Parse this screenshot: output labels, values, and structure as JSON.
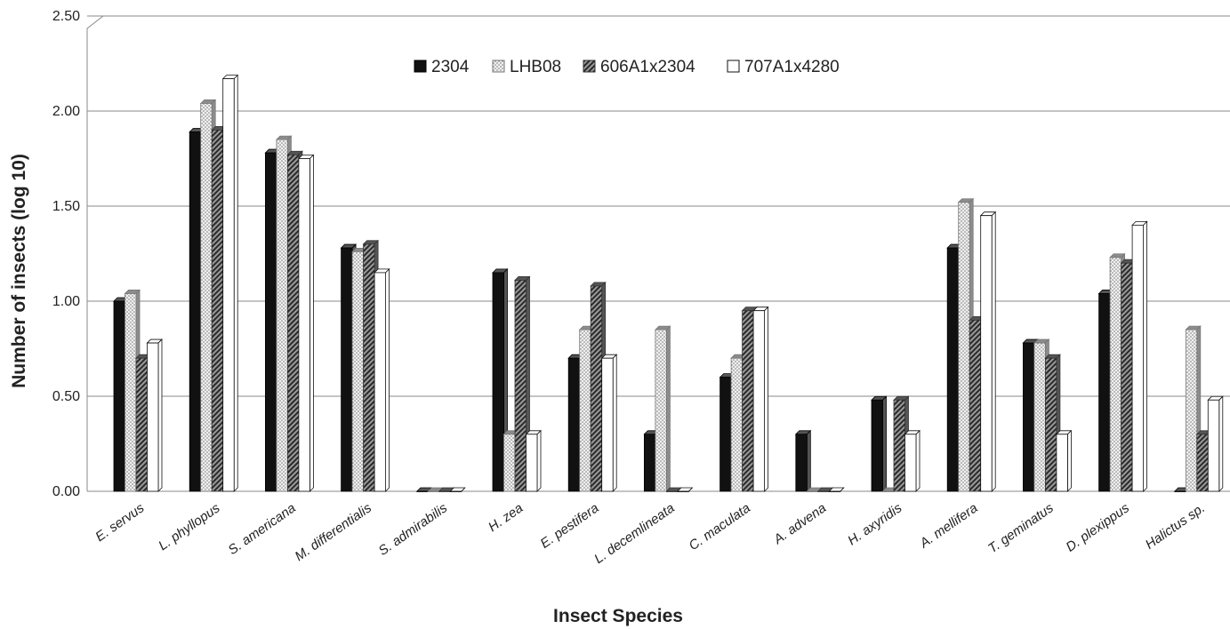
{
  "chart_data": {
    "type": "bar",
    "title": "",
    "xlabel": "Insect Species",
    "ylabel": "Number  of insects (log 10)",
    "ylim": [
      0,
      2.5
    ],
    "yticks": [
      "0.00",
      "0.50",
      "1.00",
      "1.50",
      "2.00",
      "2.50"
    ],
    "grid": true,
    "legend_position": "top-center",
    "categories": [
      "E. servus",
      "L. phyllopus",
      "S. americana",
      "M. differentialis",
      "S. admirabilis",
      "H. zea",
      "E. pestifera",
      "L. decemlineata",
      "C. maculata",
      "A. advena",
      "H. axyridis",
      "A. mellifera",
      "T. geminatus",
      "D. plexippus",
      "Halictus sp."
    ],
    "series": [
      {
        "name": "2304",
        "pattern": "solid-black",
        "values": [
          1.0,
          1.89,
          1.78,
          1.28,
          0.0,
          1.15,
          0.7,
          0.3,
          0.6,
          0.3,
          0.48,
          1.28,
          0.78,
          1.04,
          0.0
        ]
      },
      {
        "name": "LHB08",
        "pattern": "dotted",
        "values": [
          1.04,
          2.04,
          1.85,
          1.26,
          0.0,
          0.3,
          0.85,
          0.85,
          0.7,
          0.0,
          0.0,
          1.52,
          0.78,
          1.23,
          0.85
        ]
      },
      {
        "name": "606A1x2304",
        "pattern": "diagonal-hatch",
        "values": [
          0.7,
          1.9,
          1.77,
          1.3,
          0.0,
          1.11,
          1.08,
          0.0,
          0.95,
          0.0,
          0.48,
          0.9,
          0.7,
          1.2,
          0.3
        ]
      },
      {
        "name": "707A1x4280",
        "pattern": "white",
        "values": [
          0.78,
          2.17,
          1.75,
          1.15,
          0.0,
          0.3,
          0.7,
          0.0,
          0.95,
          0.0,
          0.3,
          1.45,
          0.3,
          1.4,
          0.48
        ]
      }
    ]
  }
}
